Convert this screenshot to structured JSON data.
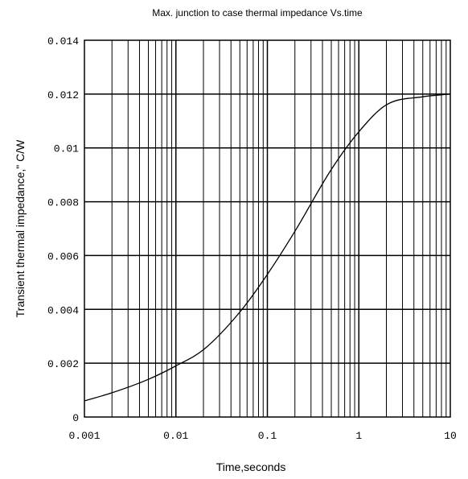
{
  "chart_data": {
    "type": "line",
    "title": "Max. junction to case thermal impedance Vs.time",
    "xlabel": "Time,seconds",
    "ylabel": "Transient thermal impedance,\" C/W",
    "xscale": "log",
    "xlim": [
      0.001,
      10
    ],
    "ylim": [
      0,
      0.014
    ],
    "grid": true,
    "x_tick_labels": [
      "0.001",
      "0.01",
      "0.1",
      "1",
      "10"
    ],
    "y_tick_labels": [
      "0",
      "0.002",
      "0.004",
      "0.006",
      "0.008",
      "0.01",
      "0.012",
      "0.014"
    ],
    "series": [
      {
        "x": [
          0.001,
          0.002,
          0.005,
          0.01,
          0.02,
          0.05,
          0.1,
          0.2,
          0.5,
          1,
          2,
          5,
          10
        ],
        "y": [
          0.0006,
          0.0009,
          0.0014,
          0.0019,
          0.0025,
          0.0039,
          0.0053,
          0.0069,
          0.0092,
          0.0106,
          0.0116,
          0.0119,
          0.012
        ]
      }
    ],
    "color": "#000000"
  }
}
